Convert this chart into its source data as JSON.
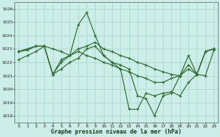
{
  "title": "Graphe pression niveau de la mer (hPa)",
  "background_color": "#cceee8",
  "grid_color": "#aad4cc",
  "line_color": "#2d6e2d",
  "marker": "+",
  "xlim": [
    -0.5,
    23.5
  ],
  "ylim": [
    1017.5,
    1026.5
  ],
  "yticks": [
    1018,
    1019,
    1020,
    1021,
    1022,
    1023,
    1024,
    1025,
    1026
  ],
  "xticks": [
    0,
    1,
    2,
    3,
    4,
    5,
    6,
    7,
    8,
    9,
    10,
    11,
    12,
    13,
    14,
    15,
    16,
    17,
    18,
    19,
    20,
    21,
    22,
    23
  ],
  "series": [
    {
      "x": [
        0,
        1,
        2,
        3,
        4,
        5,
        6,
        7,
        8,
        9,
        10,
        11,
        12,
        13,
        14,
        15,
        16,
        17,
        18,
        19,
        20,
        21,
        22,
        23
      ],
      "y": [
        1022.8,
        1022.9,
        1023.2,
        1023.2,
        1023.0,
        1022.8,
        1022.5,
        1024.8,
        1025.7,
        1024.0,
        1022.5,
        1022.0,
        1021.8,
        1021.5,
        1019.5,
        1019.3,
        1018.0,
        1019.5,
        1019.7,
        1021.0,
        1022.5,
        1021.1,
        1022.8,
        1023.0
      ]
    },
    {
      "x": [
        0,
        1,
        2,
        3,
        4,
        5,
        6,
        7,
        8,
        9,
        10,
        11,
        12,
        13,
        14,
        15,
        16,
        17,
        18,
        19,
        20,
        21,
        22,
        23
      ],
      "y": [
        1022.2,
        1022.5,
        1022.8,
        1023.2,
        1021.1,
        1021.5,
        1022.0,
        1022.3,
        1023.0,
        1023.2,
        1022.5,
        1022.0,
        1021.5,
        1018.5,
        1018.5,
        1019.7,
        1019.5,
        1019.7,
        1019.8,
        1019.5,
        1020.5,
        1021.1,
        1022.8,
        1023.0
      ]
    },
    {
      "x": [
        0,
        2,
        3,
        4,
        5,
        6,
        7,
        8,
        9,
        10,
        11,
        12,
        13,
        14,
        15,
        16,
        17,
        18,
        19,
        20,
        21,
        22,
        23
      ],
      "y": [
        1022.8,
        1023.2,
        1023.2,
        1021.1,
        1022.0,
        1022.5,
        1023.0,
        1023.2,
        1023.5,
        1023.0,
        1022.8,
        1022.5,
        1022.3,
        1022.0,
        1021.8,
        1021.5,
        1021.3,
        1021.1,
        1021.0,
        1021.8,
        1021.1,
        1022.8,
        1023.0
      ]
    },
    {
      "x": [
        0,
        2,
        3,
        4,
        5,
        6,
        7,
        8,
        9,
        10,
        11,
        12,
        13,
        14,
        15,
        16,
        17,
        18,
        19,
        20,
        21,
        22,
        23
      ],
      "y": [
        1022.8,
        1023.2,
        1023.2,
        1021.1,
        1022.2,
        1022.5,
        1022.8,
        1022.5,
        1022.3,
        1022.0,
        1021.8,
        1021.5,
        1021.3,
        1021.0,
        1020.8,
        1020.5,
        1020.5,
        1020.8,
        1021.0,
        1021.5,
        1021.1,
        1021.0,
        1022.9
      ]
    }
  ]
}
